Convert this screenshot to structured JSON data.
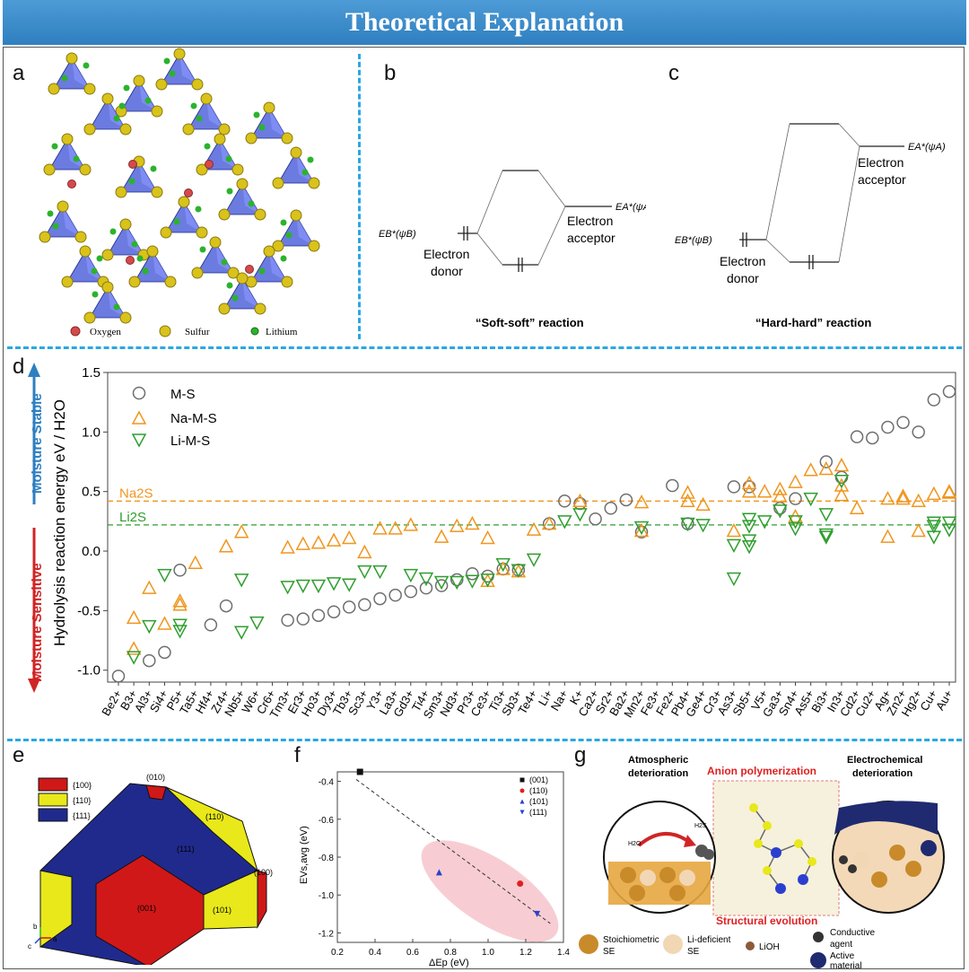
{
  "banner": {
    "title": "Theoretical Explanation"
  },
  "panel_labels": {
    "a": "a",
    "b": "b",
    "c": "c",
    "d": "d",
    "e": "e",
    "f": "f",
    "g": "g"
  },
  "panel_a": {
    "legend": [
      "Oxygen",
      "Sulfur",
      "Lithium"
    ],
    "colors": {
      "oxygen": "#d44a4a",
      "sulfur": "#d9c21a",
      "lithium": "#2bb32b",
      "tetra": "#3a4fd6"
    }
  },
  "panel_b": {
    "eb": "EB*(ψB)",
    "ea": "EA*(ψA)",
    "donor": [
      "Electron",
      "donor"
    ],
    "acceptor": [
      "Electron",
      "acceptor"
    ],
    "caption": "“Soft-soft” reaction"
  },
  "panel_c": {
    "eb": "EB*(ψB)",
    "ea": "EA*(ψA)",
    "donor": [
      "Electron",
      "donor"
    ],
    "acceptor": [
      "Electron",
      "acceptor"
    ],
    "caption": "“Hard-hard” reaction"
  },
  "panel_d": {
    "side_stable": "Moisture Stable",
    "side_sensitive": "Moisture Sensitive",
    "ylabel": "Hydrolysis reaction energy eV / H2O",
    "ref_na2s": "Na2S",
    "ref_li2s": "Li2S",
    "legend": [
      "M-S",
      "Na-M-S",
      "Li-M-S"
    ]
  },
  "chart_data": [
    {
      "type": "scatter",
      "title": "",
      "ylabel": "Hydrolysis reaction energy eV / H2O",
      "xlabel": "",
      "ylim": [
        -1.1,
        1.5
      ],
      "yticks": [
        "-1.0",
        "-0.5",
        "0.0",
        "0.5",
        "1.0",
        "1.5"
      ],
      "categories": [
        "Be2+",
        "B3+",
        "Al3+",
        "Si4+",
        "P5+",
        "Ta5+",
        "Hf4+",
        "Zr4+",
        "Nb5+",
        "W6+",
        "Cr6+",
        "Tm3+",
        "Er3+",
        "Ho3+",
        "Dy3+",
        "Tb3+",
        "Sc3+",
        "Y3+",
        "La3+",
        "Gd3+",
        "Ti4+",
        "Sm3+",
        "Nd3+",
        "Pr3+",
        "Ce3+",
        "Ti3+",
        "Sb3+",
        "Te4+",
        "Li+",
        "Na+",
        "K+",
        "Ca2+",
        "Sr2+",
        "Ba2+",
        "Mn2+",
        "Fe3+",
        "Fe2+",
        "Pb4+",
        "Ge4+",
        "Cr3+",
        "As3+",
        "Sb5+",
        "V5+",
        "Ga3+",
        "Sn4+",
        "As5+",
        "Bi3+",
        "In3+",
        "Cd2+",
        "Cu2+",
        "Ag+",
        "Zn2+",
        "Hg2+",
        "Cu+",
        "Au+"
      ],
      "reference_lines": [
        {
          "name": "Na2S",
          "y": 0.42,
          "color": "#f0961e"
        },
        {
          "name": "Li2S",
          "y": 0.22,
          "color": "#2e9e2e"
        }
      ],
      "series": [
        {
          "name": "M-S",
          "color": "#6e6e6e",
          "points": [
            [
              0,
              -1.05
            ],
            [
              2,
              -0.92
            ],
            [
              3,
              -0.85
            ],
            [
              4,
              -0.16
            ],
            [
              6,
              -0.62
            ],
            [
              7,
              -0.46
            ],
            [
              11,
              -0.58
            ],
            [
              12,
              -0.57
            ],
            [
              13,
              -0.54
            ],
            [
              14,
              -0.51
            ],
            [
              15,
              -0.47
            ],
            [
              16,
              -0.45
            ],
            [
              17,
              -0.4
            ],
            [
              18,
              -0.37
            ],
            [
              19,
              -0.34
            ],
            [
              20,
              -0.31
            ],
            [
              21,
              -0.29
            ],
            [
              22,
              -0.24
            ],
            [
              23,
              -0.19
            ],
            [
              24,
              -0.21
            ],
            [
              25,
              -0.15
            ],
            [
              26,
              -0.16
            ],
            [
              28,
              0.23
            ],
            [
              29,
              0.42
            ],
            [
              30,
              0.4
            ],
            [
              31,
              0.27
            ],
            [
              32,
              0.36
            ],
            [
              33,
              0.43
            ],
            [
              34,
              0.16
            ],
            [
              36,
              0.55
            ],
            [
              37,
              0.23
            ],
            [
              40,
              0.54
            ],
            [
              41,
              0.54
            ],
            [
              43,
              0.36
            ],
            [
              44,
              0.44
            ],
            [
              46,
              0.75
            ],
            [
              47,
              0.62
            ],
            [
              48,
              0.96
            ],
            [
              49,
              0.95
            ],
            [
              50,
              1.04
            ],
            [
              51,
              1.08
            ],
            [
              52,
              1.0
            ],
            [
              53,
              1.27
            ],
            [
              54,
              1.34
            ]
          ]
        },
        {
          "name": "Na-M-S",
          "color": "#f0961e",
          "points": [
            [
              1,
              -0.56
            ],
            [
              1,
              -0.82
            ],
            [
              2,
              -0.31
            ],
            [
              3,
              -0.61
            ],
            [
              4,
              -0.42
            ],
            [
              4,
              -0.45
            ],
            [
              5,
              -0.1
            ],
            [
              7,
              0.04
            ],
            [
              8,
              0.16
            ],
            [
              11,
              0.03
            ],
            [
              12,
              0.06
            ],
            [
              13,
              0.07
            ],
            [
              14,
              0.09
            ],
            [
              15,
              0.11
            ],
            [
              16,
              -0.01
            ],
            [
              17,
              0.19
            ],
            [
              18,
              0.19
            ],
            [
              19,
              0.22
            ],
            [
              21,
              0.12
            ],
            [
              22,
              0.21
            ],
            [
              23,
              0.23
            ],
            [
              24,
              0.11
            ],
            [
              24,
              -0.25
            ],
            [
              25,
              -0.15
            ],
            [
              26,
              -0.17
            ],
            [
              27,
              0.18
            ],
            [
              28,
              0.23
            ],
            [
              30,
              0.42
            ],
            [
              34,
              0.41
            ],
            [
              34,
              0.17
            ],
            [
              37,
              0.49
            ],
            [
              37,
              0.42
            ],
            [
              38,
              0.39
            ],
            [
              40,
              0.17
            ],
            [
              41,
              0.5
            ],
            [
              41,
              0.57
            ],
            [
              42,
              0.5
            ],
            [
              43,
              0.52
            ],
            [
              43,
              0.46
            ],
            [
              44,
              0.29
            ],
            [
              44,
              0.58
            ],
            [
              45,
              0.68
            ],
            [
              46,
              0.69
            ],
            [
              47,
              0.72
            ],
            [
              47,
              0.55
            ],
            [
              47,
              0.47
            ],
            [
              48,
              0.36
            ],
            [
              50,
              0.12
            ],
            [
              50,
              0.44
            ],
            [
              51,
              0.44
            ],
            [
              51,
              0.46
            ],
            [
              52,
              0.17
            ],
            [
              52,
              0.42
            ],
            [
              53,
              0.48
            ],
            [
              54,
              0.5
            ],
            [
              54,
              0.49
            ]
          ]
        },
        {
          "name": "Li-M-S",
          "color": "#2e9e2e",
          "points": [
            [
              1,
              -0.89
            ],
            [
              2,
              -0.63
            ],
            [
              3,
              -0.2
            ],
            [
              4,
              -0.62
            ],
            [
              4,
              -0.67
            ],
            [
              8,
              -0.24
            ],
            [
              8,
              -0.68
            ],
            [
              9,
              -0.6
            ],
            [
              11,
              -0.3
            ],
            [
              12,
              -0.29
            ],
            [
              13,
              -0.29
            ],
            [
              14,
              -0.27
            ],
            [
              15,
              -0.28
            ],
            [
              16,
              -0.17
            ],
            [
              17,
              -0.17
            ],
            [
              19,
              -0.2
            ],
            [
              20,
              -0.23
            ],
            [
              21,
              -0.26
            ],
            [
              22,
              -0.26
            ],
            [
              23,
              -0.25
            ],
            [
              24,
              -0.24
            ],
            [
              25,
              -0.11
            ],
            [
              26,
              -0.16
            ],
            [
              27,
              -0.07
            ],
            [
              29,
              0.25
            ],
            [
              30,
              0.31
            ],
            [
              34,
              0.2
            ],
            [
              37,
              0.23
            ],
            [
              38,
              0.22
            ],
            [
              40,
              0.05
            ],
            [
              40,
              -0.23
            ],
            [
              41,
              0.27
            ],
            [
              41,
              0.21
            ],
            [
              41,
              0.09
            ],
            [
              41,
              0.04
            ],
            [
              42,
              0.25
            ],
            [
              43,
              0.34
            ],
            [
              44,
              0.19
            ],
            [
              44,
              0.25
            ],
            [
              45,
              0.44
            ],
            [
              46,
              0.31
            ],
            [
              46,
              0.12
            ],
            [
              46,
              0.14
            ],
            [
              47,
              0.59
            ],
            [
              53,
              0.21
            ],
            [
              53,
              0.24
            ],
            [
              53,
              0.12
            ],
            [
              54,
              0.18
            ],
            [
              54,
              0.24
            ]
          ]
        }
      ]
    },
    {
      "type": "scatter",
      "title": "",
      "xlabel": "ΔEp (eV)",
      "ylabel": "EVs,avg (eV)",
      "xlim": [
        0.2,
        1.4
      ],
      "ylim": [
        -1.25,
        -0.35
      ],
      "xticks": [
        "0.2",
        "0.4",
        "0.6",
        "0.8",
        "1.0",
        "1.2",
        "1.4"
      ],
      "yticks": [
        "-0.4",
        "-0.6",
        "-0.8",
        "-1.0",
        "-1.2"
      ],
      "fit_line": [
        [
          0.3,
          -0.39
        ],
        [
          1.33,
          -1.15
        ]
      ],
      "series": [
        {
          "name": "(001)",
          "color": "#111111",
          "marker": "square",
          "points": [
            [
              0.32,
              -0.35
            ]
          ]
        },
        {
          "name": "(110)",
          "color": "#e02020",
          "marker": "circle",
          "points": [
            [
              1.17,
              -0.94
            ]
          ]
        },
        {
          "name": "(101)",
          "color": "#2a3fd0",
          "marker": "triangle-up",
          "points": [
            [
              0.74,
              -0.88
            ]
          ]
        },
        {
          "name": "(111)",
          "color": "#2a3fd0",
          "marker": "triangle-down",
          "points": [
            [
              1.26,
              -1.1
            ]
          ]
        }
      ]
    }
  ],
  "panel_e": {
    "legend": [
      "{100}",
      "{110}",
      "{111}"
    ],
    "faces": {
      "f010": "(010)",
      "f110": "(110)",
      "f111": "(111)",
      "f001": "(001)",
      "f101": "(101)",
      "f100": "(100)"
    },
    "axes": [
      "b",
      "c",
      "a"
    ],
    "colors": {
      "c100": "#d01818",
      "c110": "#e8e81a",
      "c111": "#202a8c"
    }
  },
  "panel_f": {
    "xlabel": "ΔEp (eV)",
    "ylabel": "EVs,avg (eV)"
  },
  "panel_g": {
    "atmospheric": [
      "Atmospheric",
      "deterioration"
    ],
    "anion": "Anion polymerization",
    "electrochemical": [
      "Electrochemical",
      "deterioration"
    ],
    "structural": "Structural evolution",
    "h2o": "H2O",
    "h2s": "H2S",
    "legend": {
      "stoich": [
        "Stoichiometric",
        "SE"
      ],
      "lidef": [
        "Li-deficient",
        "SE"
      ],
      "lioh": "LiOH",
      "conductive": [
        "Conductive",
        "agent"
      ],
      "active": [
        "Active",
        "material"
      ]
    }
  }
}
